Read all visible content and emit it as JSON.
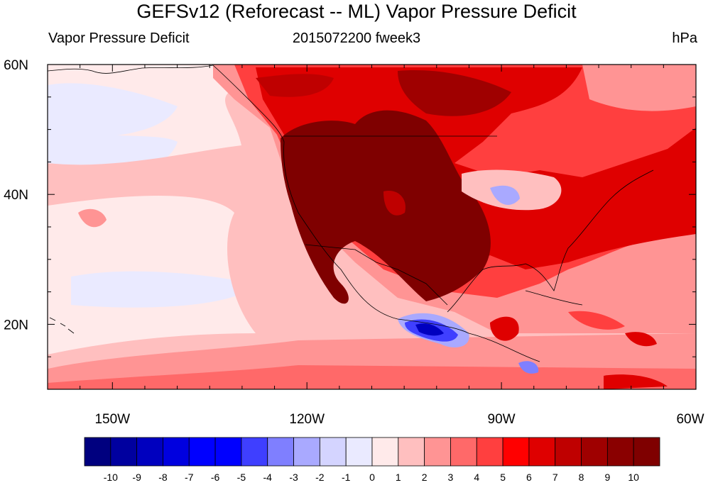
{
  "title": "GEFSv12 (Reforecast -- ML) Vapor Pressure Deficit",
  "left_label": "Vapor Pressure Deficit",
  "center_label": "2015072200 fweek3",
  "right_label": "hPa",
  "map": {
    "projection": "cylindrical equidistant",
    "lon_range": [
      -160,
      -60
    ],
    "lat_range": [
      10,
      60
    ],
    "lon_ticks": [
      {
        "value": -150,
        "label": "150W"
      },
      {
        "value": -120,
        "label": "120W"
      },
      {
        "value": -90,
        "label": "90W"
      },
      {
        "value": -60,
        "label": "60W"
      }
    ],
    "lat_ticks": [
      {
        "value": 20,
        "label": "20N"
      },
      {
        "value": 40,
        "label": "40N"
      },
      {
        "value": 60,
        "label": "60N"
      }
    ]
  },
  "colorbar": {
    "labels": [
      "-10",
      "-9",
      "-8",
      "-7",
      "-6",
      "-5",
      "-4",
      "-3",
      "-2",
      "-1",
      "0",
      "1",
      "2",
      "3",
      "4",
      "5",
      "6",
      "7",
      "8",
      "9",
      "10"
    ],
    "colors": [
      "#00007f",
      "#00009f",
      "#0000bf",
      "#0000df",
      "#0000ff",
      "#0000ff",
      "#3f3fff",
      "#7f7fff",
      "#a9a9ff",
      "#d4d4ff",
      "#eaeaff",
      "#ffeaea",
      "#ffbfbf",
      "#ff9494",
      "#ff6969",
      "#ff3f3f",
      "#ff0000",
      "#df0000",
      "#bf0000",
      "#9f0000",
      "#8a0000",
      "#7f0000"
    ]
  }
}
